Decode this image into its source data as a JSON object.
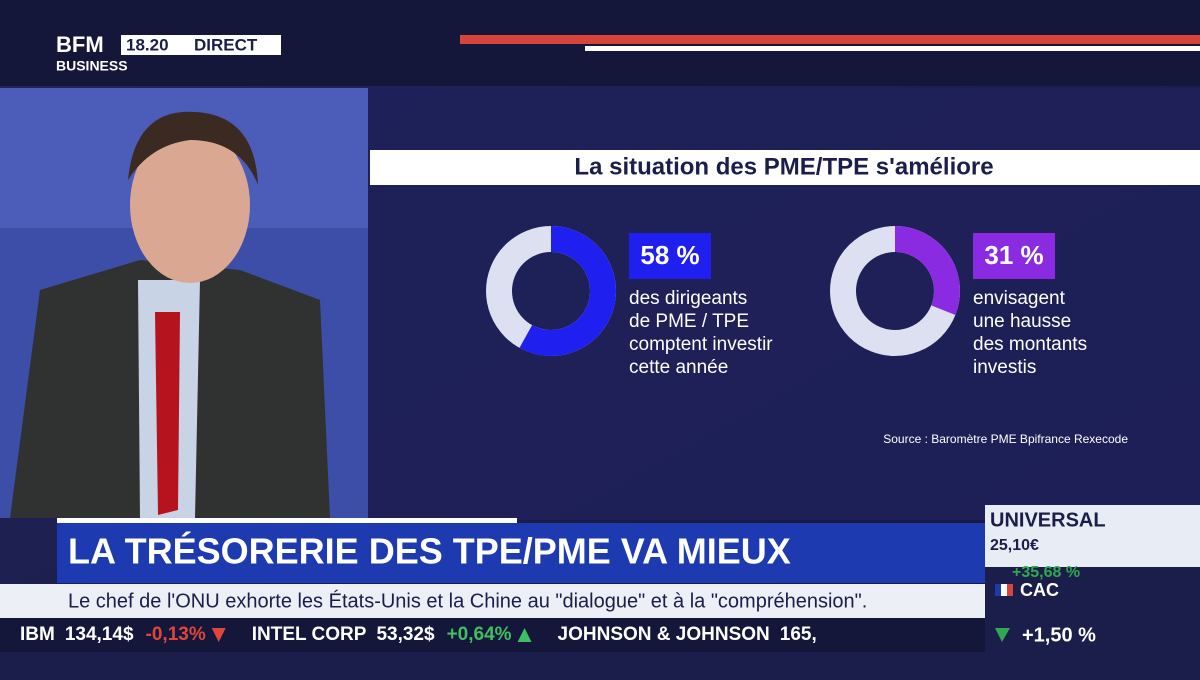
{
  "header": {
    "logo_top": "BFM",
    "logo_bottom": "BUSINESS",
    "time": "18.20",
    "live": "DIRECT"
  },
  "infographic": {
    "title": "La situation des PME/TPE s'améliore",
    "donuts": [
      {
        "value": 58,
        "value_label": "58 %",
        "color": "#1f1ff0",
        "text": [
          "des dirigeants",
          "de PME / TPE",
          "comptent investir",
          "cette année"
        ]
      },
      {
        "value": 31,
        "value_label": "31 %",
        "color": "#8a2be2",
        "text": [
          "envisagent",
          "une hausse",
          "des montants",
          "investis"
        ]
      }
    ],
    "source": "Source : Baromètre PME Bpifrance Rexecode"
  },
  "headline": "LA TRÉSORERIE DES TPE/PME VA MIEUX",
  "news_ticker": "Le chef de l'ONU exhorte les États-Unis et la Chine au \"dialogue\" et à la \"compréhension\".",
  "stocks": [
    {
      "name": "IBM",
      "price": "134,14$",
      "change": "-0,13%"
    },
    {
      "name": "INTEL CORP",
      "price": "53,32$",
      "change": "+0,64%"
    },
    {
      "name": "JOHNSON & JOHNSON",
      "price": "165,"
    }
  ],
  "side_panel": {
    "stock": "UNIVERSAL",
    "price": "25,10€",
    "change": "+35,68 %",
    "index": "CAC",
    "index_change": "+1,50 %"
  }
}
